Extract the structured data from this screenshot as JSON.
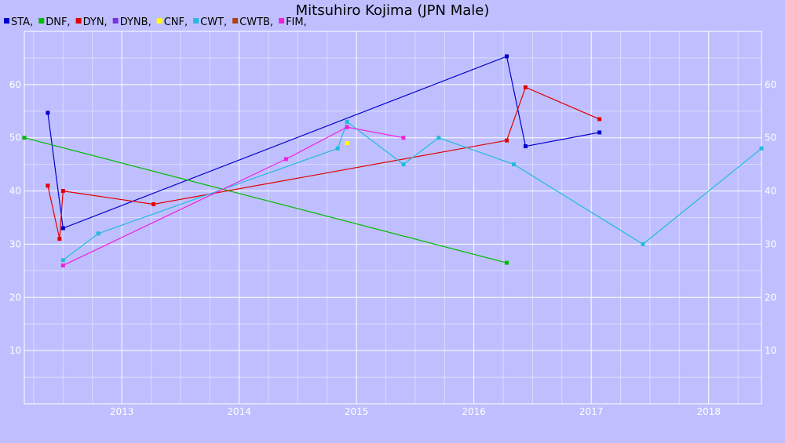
{
  "chart_data": {
    "type": "line",
    "title": "Mitsuhiro Kojima (JPN Male)",
    "xlabel": "",
    "ylabel": "",
    "xlim": [
      2012.17,
      2018.45
    ],
    "ylim": [
      0,
      70
    ],
    "x_ticks": [
      2013,
      2014,
      2015,
      2016,
      2017,
      2018
    ],
    "y_ticks": [
      10,
      20,
      30,
      40,
      50,
      60
    ],
    "grid": true,
    "legend_position": "top-left",
    "series": [
      {
        "name": "STA",
        "color": "#0000cc",
        "points": [
          [
            2012.37,
            54.7
          ],
          [
            2012.5,
            33.0
          ],
          [
            2016.28,
            65.3
          ],
          [
            2016.44,
            48.4
          ],
          [
            2017.07,
            51.0
          ]
        ]
      },
      {
        "name": "DNF",
        "color": "#00bb00",
        "points": [
          [
            2012.17,
            50.0
          ],
          [
            2016.28,
            26.5
          ]
        ]
      },
      {
        "name": "DYN",
        "color": "#e00000",
        "points": [
          [
            2012.37,
            41.0
          ],
          [
            2012.47,
            31.0
          ],
          [
            2012.5,
            40.0
          ],
          [
            2013.27,
            37.5
          ],
          [
            2016.28,
            49.5
          ],
          [
            2016.44,
            59.5
          ],
          [
            2017.07,
            53.5
          ]
        ]
      },
      {
        "name": "DYNB",
        "color": "#7733dd",
        "points": []
      },
      {
        "name": "CNF",
        "color": "#ffff00",
        "points": [
          [
            2014.92,
            49.0
          ]
        ]
      },
      {
        "name": "CWT",
        "color": "#22bbdd",
        "points": [
          [
            2012.5,
            27.0
          ],
          [
            2012.8,
            32.0
          ],
          [
            2014.84,
            48.0
          ],
          [
            2014.92,
            53.0
          ],
          [
            2015.4,
            45.0
          ],
          [
            2015.7,
            50.0
          ],
          [
            2016.34,
            45.0
          ],
          [
            2017.44,
            30.0
          ],
          [
            2018.45,
            48.0
          ]
        ]
      },
      {
        "name": "CWTB",
        "color": "#aa4411",
        "points": []
      },
      {
        "name": "FIM",
        "color": "#ee22dd",
        "points": [
          [
            2012.5,
            26.0
          ],
          [
            2014.4,
            46.0
          ],
          [
            2014.92,
            52.0
          ],
          [
            2015.4,
            50.0
          ]
        ]
      }
    ]
  }
}
